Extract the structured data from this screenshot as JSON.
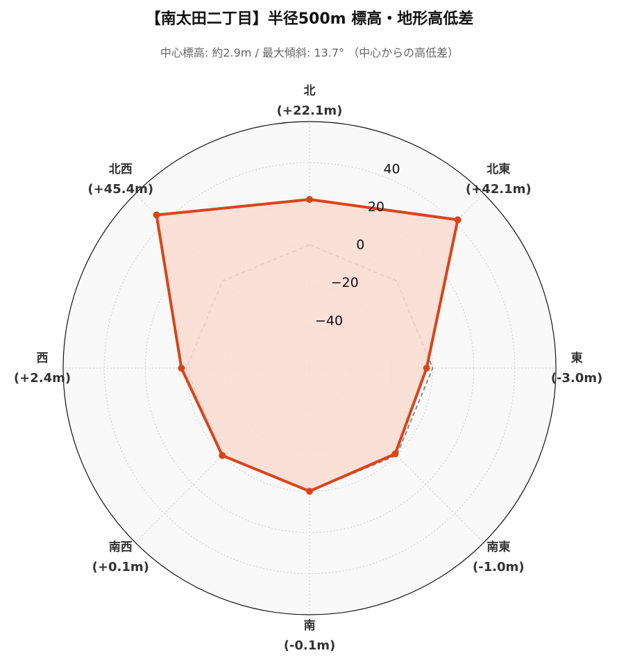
{
  "chart_data": {
    "type": "radar",
    "title": "【南太田二丁目】半径500m 標高・地形高低差",
    "subtitle": "中心標高: 約2.9m / 最大傾斜: 13.7° （中心からの高低差）",
    "categories": [
      "北",
      "北東",
      "東",
      "南東",
      "南",
      "南西",
      "西",
      "北西"
    ],
    "series": [
      {
        "color": "#d9441a",
        "fill": "#fcdcd2",
        "values": [
          22.1,
          42.1,
          -3.0,
          -1.0,
          -0.1,
          0.1,
          2.4,
          45.4
        ],
        "value_labels": [
          "(+22.1m)",
          "(+42.1m)",
          "(-3.0m)",
          "(-1.0m)",
          "(-0.1m)",
          "(+0.1m)",
          "(+2.4m)",
          "(+45.4m)"
        ]
      }
    ],
    "baseline": 0,
    "ylim": [
      -60,
      60
    ],
    "yticks": [
      {
        "value": -40,
        "label": "−40"
      },
      {
        "value": -20,
        "label": "−20"
      },
      0,
      20,
      40
    ],
    "grid": true
  }
}
